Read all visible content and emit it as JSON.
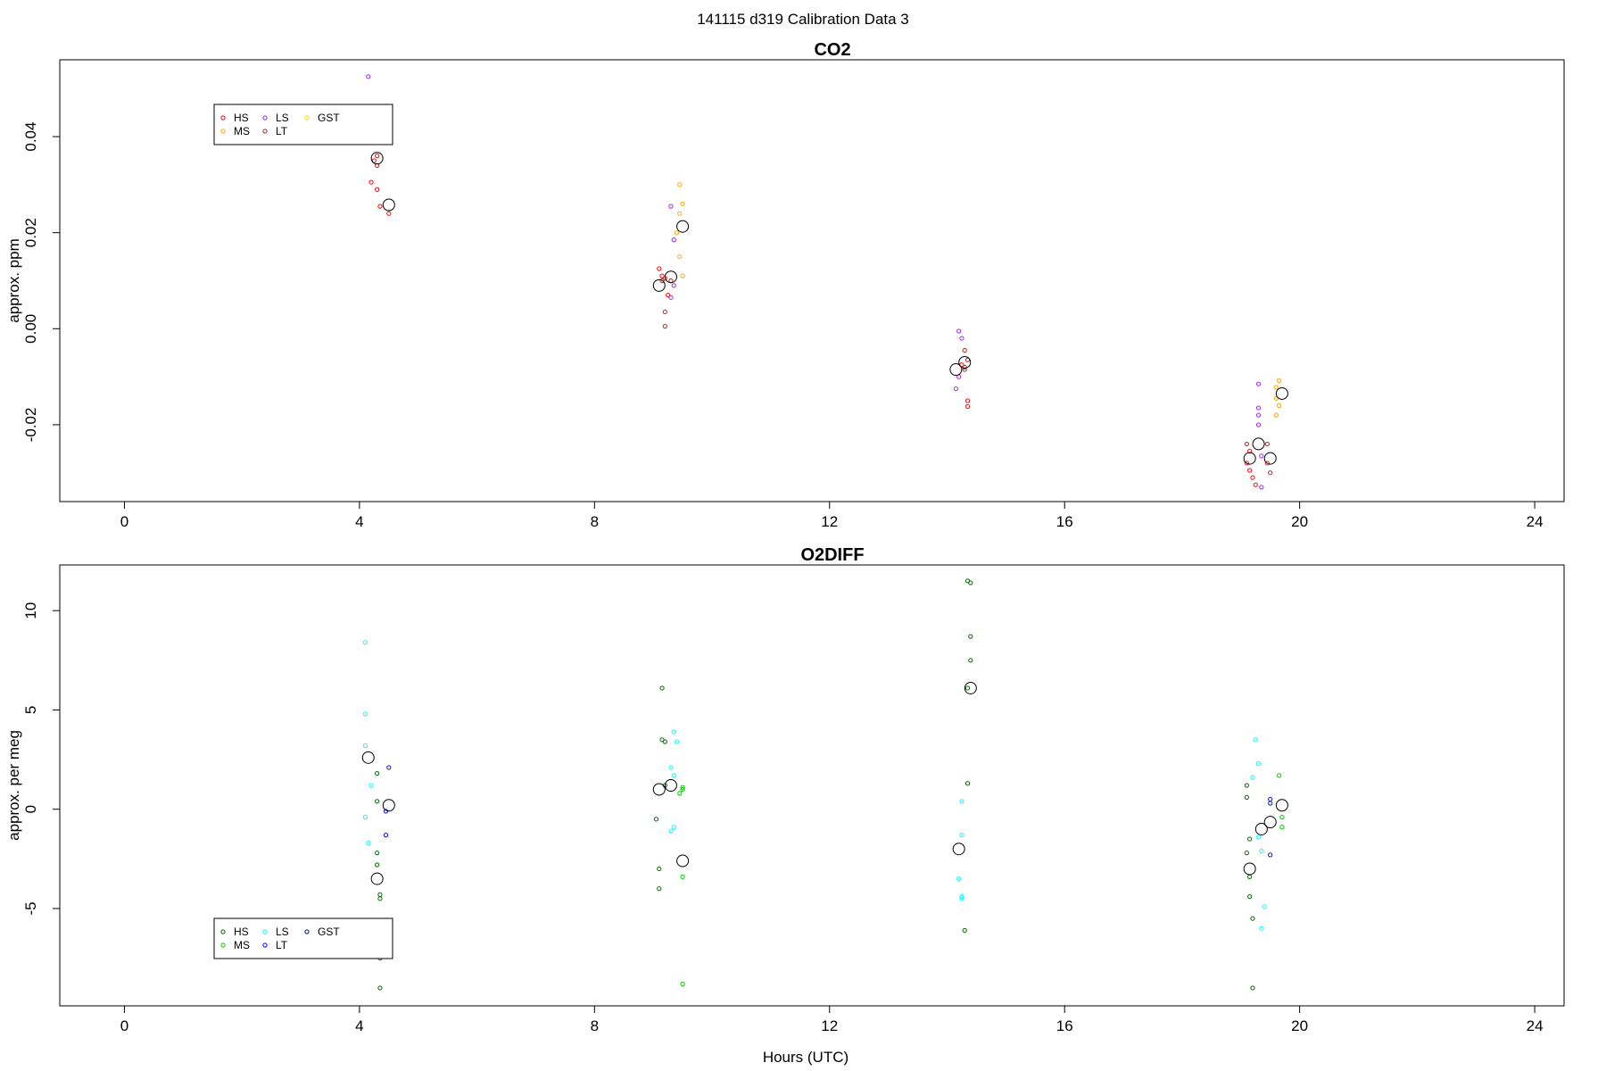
{
  "figure": {
    "title": "141115   d319   Calibration Data 3",
    "xlabel": "Hours (UTC)"
  },
  "chart_data": [
    {
      "type": "scatter",
      "title": "CO2",
      "xlabel": "",
      "ylabel": "approx. ppm",
      "xlim": [
        -1.1,
        24.5
      ],
      "ylim": [
        -0.036,
        0.056
      ],
      "xticks": [
        "0",
        "4",
        "8",
        "12",
        "16",
        "20",
        "24"
      ],
      "yticks": [
        "-0.02",
        "0.00",
        "0.02",
        "0.04"
      ],
      "grid": false,
      "legend_position": "top-left",
      "legend": [
        "HS",
        "MS",
        "LS",
        "LT",
        "GST"
      ],
      "series": [
        {
          "name": "HS",
          "color": "#ff0000",
          "points": [
            [
              4.2,
              0.0305
            ],
            [
              4.3,
              0.029
            ],
            [
              4.35,
              0.0255
            ],
            [
              4.25,
              0.035
            ],
            [
              4.5,
              0.024
            ],
            [
              9.1,
              0.0125
            ],
            [
              9.15,
              0.011
            ],
            [
              9.2,
              0.0105
            ],
            [
              9.25,
              0.007
            ],
            [
              9.2,
              0.0035
            ],
            [
              9.2,
              0.0005
            ],
            [
              14.25,
              -0.0075
            ],
            [
              14.3,
              -0.008
            ],
            [
              14.35,
              -0.015
            ],
            [
              14.35,
              -0.0162
            ],
            [
              19.1,
              -0.024
            ],
            [
              19.15,
              -0.0255
            ],
            [
              19.1,
              -0.028
            ],
            [
              19.15,
              -0.0295
            ],
            [
              19.2,
              -0.031
            ],
            [
              19.25,
              -0.0325
            ]
          ]
        },
        {
          "name": "MS",
          "color": "#ffa500",
          "points": [
            [
              9.45,
              0.03
            ],
            [
              9.5,
              0.026
            ],
            [
              9.45,
              0.024
            ],
            [
              9.4,
              0.02
            ],
            [
              9.45,
              0.015
            ],
            [
              9.5,
              0.011
            ],
            [
              19.65,
              -0.0108
            ],
            [
              19.6,
              -0.0122
            ],
            [
              19.6,
              -0.0145
            ],
            [
              19.65,
              -0.016
            ],
            [
              19.6,
              -0.018
            ]
          ]
        },
        {
          "name": "LS",
          "color": "#a020f0",
          "points": [
            [
              4.15,
              0.0525
            ],
            [
              9.3,
              0.0255
            ],
            [
              9.35,
              0.0185
            ],
            [
              9.35,
              0.009
            ],
            [
              9.3,
              0.0065
            ],
            [
              14.2,
              -0.0005
            ],
            [
              14.25,
              -0.002
            ],
            [
              14.2,
              -0.01
            ],
            [
              14.15,
              -0.0125
            ],
            [
              19.3,
              -0.0115
            ],
            [
              19.3,
              -0.0165
            ],
            [
              19.3,
              -0.018
            ],
            [
              19.3,
              -0.02
            ],
            [
              19.35,
              -0.0265
            ],
            [
              19.35,
              -0.033
            ]
          ]
        },
        {
          "name": "LT",
          "color": "#b22222",
          "points": [
            [
              4.3,
              0.036
            ],
            [
              4.3,
              0.034
            ],
            [
              9.15,
              0.01
            ],
            [
              9.3,
              0.01
            ],
            [
              14.3,
              -0.0045
            ],
            [
              14.35,
              -0.0065
            ],
            [
              14.3,
              -0.0085
            ],
            [
              19.45,
              -0.024
            ],
            [
              19.45,
              -0.028
            ],
            [
              19.5,
              -0.03
            ]
          ]
        },
        {
          "name": "GST",
          "color": "#ffd700",
          "points": []
        }
      ],
      "means": [
        [
          4.3,
          0.0355
        ],
        [
          4.5,
          0.0258
        ],
        [
          9.1,
          0.009
        ],
        [
          9.3,
          0.0108
        ],
        [
          9.5,
          0.0213
        ],
        [
          14.15,
          -0.0085
        ],
        [
          14.3,
          -0.007
        ],
        [
          19.15,
          -0.027
        ],
        [
          19.3,
          -0.024
        ],
        [
          19.5,
          -0.027
        ],
        [
          19.7,
          -0.0135
        ]
      ]
    },
    {
      "type": "scatter",
      "title": "O2DIFF",
      "xlabel": "Hours (UTC)",
      "ylabel": "approx. per meg",
      "xlim": [
        -1.1,
        24.5
      ],
      "ylim": [
        -9.9,
        12.3
      ],
      "xticks": [
        "0",
        "4",
        "8",
        "12",
        "16",
        "20",
        "24"
      ],
      "yticks": [
        "-5",
        "0",
        "5",
        "10"
      ],
      "grid": false,
      "legend_position": "bottom-left",
      "legend": [
        "HS",
        "MS",
        "LS",
        "LT",
        "GST"
      ],
      "series": [
        {
          "name": "HS",
          "color": "#006400",
          "points": [
            [
              4.3,
              1.8
            ],
            [
              4.3,
              0.4
            ],
            [
              4.3,
              -2.2
            ],
            [
              4.3,
              -2.8
            ],
            [
              4.35,
              -4.3
            ],
            [
              4.35,
              -4.5
            ],
            [
              4.35,
              -7.5
            ],
            [
              4.35,
              -9.0
            ],
            [
              9.15,
              6.1
            ],
            [
              9.15,
              3.5
            ],
            [
              9.2,
              3.4
            ],
            [
              9.2,
              1.2
            ],
            [
              9.05,
              -0.5
            ],
            [
              9.1,
              -3.0
            ],
            [
              9.1,
              -4.0
            ],
            [
              14.35,
              11.5
            ],
            [
              14.4,
              11.4
            ],
            [
              14.4,
              8.7
            ],
            [
              14.4,
              7.5
            ],
            [
              14.35,
              6.1
            ],
            [
              14.35,
              1.3
            ],
            [
              14.3,
              -6.1
            ],
            [
              19.1,
              1.2
            ],
            [
              19.1,
              0.6
            ],
            [
              19.15,
              -1.5
            ],
            [
              19.1,
              -2.2
            ],
            [
              19.15,
              -3.4
            ],
            [
              19.15,
              -4.4
            ],
            [
              19.2,
              -5.5
            ],
            [
              19.2,
              -9.0
            ]
          ]
        },
        {
          "name": "MS",
          "color": "#00cd00",
          "points": [
            [
              9.5,
              1.1
            ],
            [
              9.5,
              1.0
            ],
            [
              9.45,
              0.8
            ],
            [
              9.5,
              -3.4
            ],
            [
              9.5,
              -8.8
            ],
            [
              19.65,
              1.7
            ],
            [
              19.7,
              -0.4
            ],
            [
              19.7,
              -0.9
            ]
          ]
        },
        {
          "name": "LS",
          "color": "#00ffff",
          "points": [
            [
              4.1,
              8.4
            ],
            [
              4.1,
              4.8
            ],
            [
              4.1,
              3.2
            ],
            [
              4.2,
              1.2
            ],
            [
              4.1,
              -0.4
            ],
            [
              4.15,
              -1.7
            ],
            [
              9.35,
              3.9
            ],
            [
              9.3,
              2.1
            ],
            [
              9.35,
              1.7
            ],
            [
              9.4,
              3.4
            ],
            [
              9.35,
              -0.9
            ],
            [
              9.3,
              -1.1
            ],
            [
              14.25,
              0.4
            ],
            [
              14.25,
              -1.3
            ],
            [
              14.2,
              -3.5
            ],
            [
              14.25,
              -4.5
            ],
            [
              14.25,
              -4.4
            ],
            [
              19.25,
              3.5
            ],
            [
              19.3,
              2.3
            ],
            [
              19.2,
              1.6
            ],
            [
              19.3,
              -1.4
            ],
            [
              19.35,
              -2.1
            ],
            [
              19.4,
              -4.9
            ],
            [
              19.35,
              -6.0
            ]
          ]
        },
        {
          "name": "LT",
          "color": "#0000ff",
          "points": [
            [
              4.5,
              2.1
            ],
            [
              4.45,
              -0.1
            ],
            [
              4.45,
              -1.3
            ],
            [
              19.5,
              0.5
            ],
            [
              19.5,
              0.3
            ],
            [
              19.5,
              -2.3
            ]
          ]
        },
        {
          "name": "GST",
          "color": "#00008b",
          "points": []
        }
      ],
      "means": [
        [
          4.15,
          2.6
        ],
        [
          4.5,
          0.2
        ],
        [
          4.3,
          -3.5
        ],
        [
          9.1,
          1.0
        ],
        [
          9.3,
          1.2
        ],
        [
          9.5,
          -2.6
        ],
        [
          14.4,
          6.1
        ],
        [
          14.2,
          -2.0
        ],
        [
          19.15,
          -3.0
        ],
        [
          19.35,
          -1.0
        ],
        [
          19.5,
          -0.65
        ],
        [
          19.7,
          0.2
        ]
      ]
    }
  ]
}
